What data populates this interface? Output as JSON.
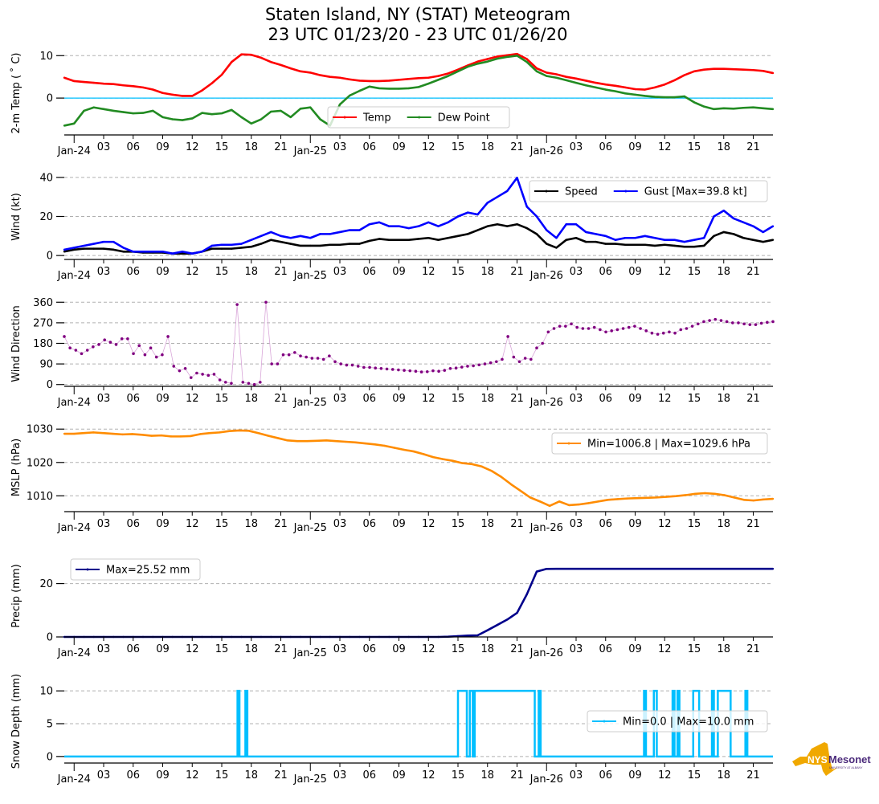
{
  "title": {
    "line1": "Staten Island, NY (STAT) Meteogram",
    "line2": "23 UTC 01/23/20 - 23 UTC 01/26/20"
  },
  "logo": {
    "text_main": "NYS",
    "text_brand": "Mesonet",
    "text_sub": "UNIVERSITY AT ALBANY",
    "state_color": "#f0a800",
    "brand_color": "#4b2a7b"
  },
  "x_axis": {
    "start": "2020-01-23T23:00Z",
    "end": "2020-01-26T23:00Z",
    "hours_total": 72,
    "major_ticks": [
      {
        "hour": 1,
        "label": "Jan-24"
      },
      {
        "hour": 25,
        "label": "Jan-25"
      },
      {
        "hour": 49,
        "label": "Jan-26"
      }
    ],
    "minor_ticks": [
      {
        "hour": 4,
        "label": "03"
      },
      {
        "hour": 7,
        "label": "06"
      },
      {
        "hour": 10,
        "label": "09"
      },
      {
        "hour": 13,
        "label": "12"
      },
      {
        "hour": 16,
        "label": "15"
      },
      {
        "hour": 19,
        "label": "18"
      },
      {
        "hour": 22,
        "label": "21"
      },
      {
        "hour": 28,
        "label": "03"
      },
      {
        "hour": 31,
        "label": "06"
      },
      {
        "hour": 34,
        "label": "09"
      },
      {
        "hour": 37,
        "label": "12"
      },
      {
        "hour": 40,
        "label": "15"
      },
      {
        "hour": 43,
        "label": "18"
      },
      {
        "hour": 46,
        "label": "21"
      },
      {
        "hour": 52,
        "label": "03"
      },
      {
        "hour": 55,
        "label": "06"
      },
      {
        "hour": 58,
        "label": "09"
      },
      {
        "hour": 61,
        "label": "12"
      },
      {
        "hour": 64,
        "label": "15"
      },
      {
        "hour": 67,
        "label": "18"
      },
      {
        "hour": 70,
        "label": "21"
      }
    ]
  },
  "chart_data": [
    {
      "type": "line",
      "id": "temp",
      "ylabel": "2-m Temp ($^\\circ$C)",
      "ylabel_display": "2-m Temp ( ˚ C)",
      "ylim": [
        -8.5,
        11
      ],
      "yticks": [
        0,
        10
      ],
      "grid": true,
      "zero_line_color": "#00bfff",
      "legend": {
        "placement": "lower-center",
        "entries": [
          "Temp",
          "Dew Point"
        ]
      },
      "series": [
        {
          "name": "Temp",
          "color": "#ff0000",
          "values": [
            4.8,
            4.0,
            3.8,
            3.6,
            3.4,
            3.3,
            3.0,
            2.8,
            2.5,
            2.0,
            1.2,
            0.8,
            0.5,
            0.5,
            1.8,
            3.5,
            5.5,
            8.5,
            10.3,
            10.2,
            9.5,
            8.5,
            7.8,
            7.0,
            6.3,
            6.0,
            5.4,
            5.0,
            4.8,
            4.4,
            4.1,
            4.0,
            4.0,
            4.1,
            4.3,
            4.5,
            4.7,
            4.8,
            5.2,
            5.8,
            6.7,
            7.7,
            8.6,
            9.2,
            9.8,
            10.1,
            10.4,
            9.2,
            7.0,
            6.0,
            5.6,
            5.0,
            4.6,
            4.1,
            3.6,
            3.2,
            2.9,
            2.5,
            2.1,
            2.0,
            2.5,
            3.2,
            4.2,
            5.4,
            6.3,
            6.7,
            6.9,
            6.9,
            6.8,
            6.7,
            6.6,
            6.4,
            5.9
          ]
        },
        {
          "name": "Dew Point",
          "color": "#228b22",
          "values": [
            -6.5,
            -6.0,
            -3.0,
            -2.2,
            -2.6,
            -3.0,
            -3.3,
            -3.6,
            -3.5,
            -3.0,
            -4.5,
            -5.0,
            -5.2,
            -4.8,
            -3.5,
            -3.8,
            -3.6,
            -2.8,
            -4.5,
            -6.0,
            -5.0,
            -3.2,
            -3.0,
            -4.5,
            -2.5,
            -2.2,
            -5.0,
            -6.5,
            -1.5,
            0.6,
            1.7,
            2.7,
            2.3,
            2.2,
            2.2,
            2.3,
            2.6,
            3.4,
            4.3,
            5.2,
            6.3,
            7.4,
            8.1,
            8.6,
            9.3,
            9.7,
            10.0,
            8.5,
            6.3,
            5.2,
            4.8,
            4.2,
            3.6,
            3.0,
            2.5,
            2.0,
            1.6,
            1.1,
            0.8,
            0.5,
            0.3,
            0.2,
            0.2,
            0.4,
            -1.0,
            -2.0,
            -2.6,
            -2.4,
            -2.5,
            -2.3,
            -2.2,
            -2.4,
            -2.6
          ]
        }
      ]
    },
    {
      "type": "line",
      "id": "wind",
      "ylabel": "Wind (kt)",
      "ylim": [
        -2,
        42
      ],
      "yticks": [
        0,
        20,
        40
      ],
      "grid": true,
      "legend": {
        "placement": "upper-right",
        "entries": [
          "Speed",
          "Gust [Max=39.8 kt]"
        ]
      },
      "max_gust_kt": 39.8,
      "series": [
        {
          "name": "Speed",
          "color": "#000000",
          "values": [
            2,
            3,
            3.5,
            3.5,
            3.5,
            3,
            2,
            2,
            1.5,
            1.5,
            1.5,
            1,
            1,
            1,
            2,
            3.5,
            3.5,
            3.5,
            4,
            4.5,
            6,
            8,
            7,
            6,
            5,
            5,
            5,
            5.5,
            5.5,
            6,
            6,
            7.5,
            8.5,
            8,
            8,
            8,
            8.5,
            9,
            8,
            9,
            10,
            11,
            13,
            15,
            16,
            15,
            16,
            14,
            11,
            6,
            4,
            8,
            9,
            7,
            7,
            6,
            6,
            5.5,
            5.5,
            5.5,
            5,
            5.5,
            5,
            4.5,
            4.5,
            5,
            10,
            12,
            11,
            9,
            8,
            7,
            8
          ]
        },
        {
          "name": "Gust [Max=39.8 kt]",
          "color": "#0000ff",
          "values": [
            3,
            4,
            5,
            6,
            7,
            7,
            4,
            2,
            2,
            2,
            2,
            1,
            2,
            1,
            2,
            5,
            5.5,
            5.5,
            6,
            8,
            10,
            12,
            10,
            9,
            10,
            9,
            11,
            11,
            12,
            13,
            13,
            16,
            17,
            15,
            15,
            14,
            15,
            17,
            15,
            17,
            20,
            22,
            21,
            27,
            30,
            33,
            39.8,
            25,
            20,
            13,
            9,
            16,
            16,
            12,
            11,
            10,
            8,
            9,
            9,
            10,
            9,
            8,
            8,
            7,
            8,
            9,
            20,
            23,
            19,
            17,
            15,
            12,
            15
          ]
        }
      ]
    },
    {
      "type": "scatter",
      "id": "wind_direction",
      "ylabel": "Wind Direction",
      "ylim": [
        -8,
        368
      ],
      "yticks": [
        0,
        90,
        180,
        270,
        360
      ],
      "grid": true,
      "series": [
        {
          "name": "Direction",
          "color": "#800080",
          "values": [
            210,
            160,
            150,
            135,
            150,
            165,
            175,
            195,
            185,
            175,
            200,
            200,
            135,
            170,
            130,
            160,
            120,
            130,
            210,
            80,
            60,
            70,
            30,
            50,
            45,
            40,
            45,
            20,
            10,
            5,
            350,
            10,
            5,
            0,
            10,
            360,
            90,
            90,
            130,
            130,
            140,
            125,
            120,
            115,
            115,
            110,
            125,
            100,
            90,
            85,
            85,
            80,
            75,
            75,
            72,
            70,
            68,
            66,
            64,
            62,
            60,
            58,
            55,
            56,
            60,
            58,
            62,
            70,
            72,
            76,
            80,
            82,
            86,
            90,
            95,
            100,
            110,
            210,
            120,
            100,
            115,
            110,
            160,
            180,
            230,
            245,
            255,
            255,
            265,
            250,
            245,
            245,
            250,
            240,
            230,
            235,
            240,
            245,
            250,
            255,
            245,
            235,
            225,
            220,
            225,
            230,
            225,
            240,
            245,
            255,
            265,
            275,
            280,
            285,
            280,
            275,
            270,
            270,
            265,
            262,
            262,
            268,
            272,
            275
          ]
        }
      ]
    },
    {
      "type": "line",
      "id": "mslp",
      "ylabel": "MSLP (hPa)",
      "ylim": [
        1005.5,
        1031.5
      ],
      "yticks": [
        1010,
        1020,
        1030
      ],
      "grid": true,
      "legend": {
        "placement": "upper-right",
        "entries": [
          "Min=1006.8 | Max=1029.6 hPa"
        ]
      },
      "min_hpa": 1006.8,
      "max_hpa": 1029.6,
      "series": [
        {
          "name": "Min=1006.8 | Max=1029.6 hPa",
          "color": "#ff8c00",
          "values": [
            1028.6,
            1028.6,
            1028.8,
            1029.0,
            1028.8,
            1028.6,
            1028.4,
            1028.5,
            1028.3,
            1028.0,
            1028.1,
            1027.8,
            1027.8,
            1027.9,
            1028.5,
            1028.8,
            1029.0,
            1029.4,
            1029.6,
            1029.5,
            1028.8,
            1028.0,
            1027.3,
            1026.6,
            1026.4,
            1026.4,
            1026.5,
            1026.6,
            1026.4,
            1026.2,
            1026.0,
            1025.7,
            1025.4,
            1025.0,
            1024.4,
            1023.8,
            1023.3,
            1022.5,
            1021.6,
            1021.0,
            1020.5,
            1019.8,
            1019.5,
            1018.8,
            1017.5,
            1015.7,
            1013.5,
            1011.5,
            1009.5,
            1008.3,
            1007.0,
            1008.3,
            1007.2,
            1007.4,
            1007.8,
            1008.3,
            1008.8,
            1009.0,
            1009.2,
            1009.3,
            1009.4,
            1009.5,
            1009.7,
            1009.9,
            1010.2,
            1010.6,
            1010.8,
            1010.6,
            1010.2,
            1009.5,
            1008.8,
            1008.6,
            1008.9,
            1009.1
          ]
        }
      ]
    },
    {
      "type": "line",
      "id": "precip",
      "ylabel": "Precip (mm)",
      "ylim": [
        0,
        28
      ],
      "yticks": [
        0,
        20
      ],
      "grid": true,
      "legend": {
        "placement": "upper-left",
        "entries": [
          "Max=25.52 mm"
        ]
      },
      "max_mm": 25.52,
      "series": [
        {
          "name": "Max=25.52 mm",
          "color": "#00008b",
          "values": [
            0,
            0,
            0,
            0,
            0,
            0,
            0,
            0,
            0,
            0,
            0,
            0,
            0,
            0,
            0,
            0,
            0,
            0,
            0,
            0,
            0,
            0,
            0,
            0,
            0,
            0,
            0,
            0,
            0,
            0,
            0,
            0,
            0,
            0,
            0,
            0,
            0,
            0,
            0,
            0.1,
            0.3,
            0.5,
            0.6,
            2.5,
            4.5,
            6.5,
            9.0,
            16.0,
            24.5,
            25.5,
            25.52,
            25.52,
            25.52,
            25.52,
            25.52,
            25.52,
            25.52,
            25.52,
            25.52,
            25.52,
            25.52,
            25.52,
            25.52,
            25.52,
            25.52,
            25.52,
            25.52,
            25.52,
            25.52,
            25.52,
            25.52,
            25.52,
            25.52
          ]
        }
      ]
    },
    {
      "type": "line",
      "id": "snow_depth",
      "ylabel": "Snow Depth (mm)",
      "ylim": [
        -1,
        11
      ],
      "yticks": [
        0,
        5,
        10
      ],
      "grid": true,
      "legend": {
        "placement": "center-right",
        "entries": [
          "Min=0.0 | Max=10.0 mm"
        ]
      },
      "min_mm": 0.0,
      "max_mm": 10.0,
      "series": [
        {
          "name": "Min=0.0 | Max=10.0 mm",
          "color": "#00bfff",
          "segments_at_10mm": [
            [
              17.6,
              17.8
            ],
            [
              18.4,
              18.6
            ],
            [
              40.0,
              40.9
            ],
            [
              41.2,
              41.5
            ],
            [
              41.7,
              47.8
            ],
            [
              48.2,
              48.4
            ],
            [
              58.9,
              59.1
            ],
            [
              59.9,
              60.2
            ],
            [
              61.8,
              62.0
            ],
            [
              62.3,
              62.5
            ],
            [
              63.9,
              64.5
            ],
            [
              65.8,
              66.0
            ],
            [
              66.4,
              67.7
            ],
            [
              69.2,
              69.4
            ]
          ]
        }
      ]
    }
  ]
}
